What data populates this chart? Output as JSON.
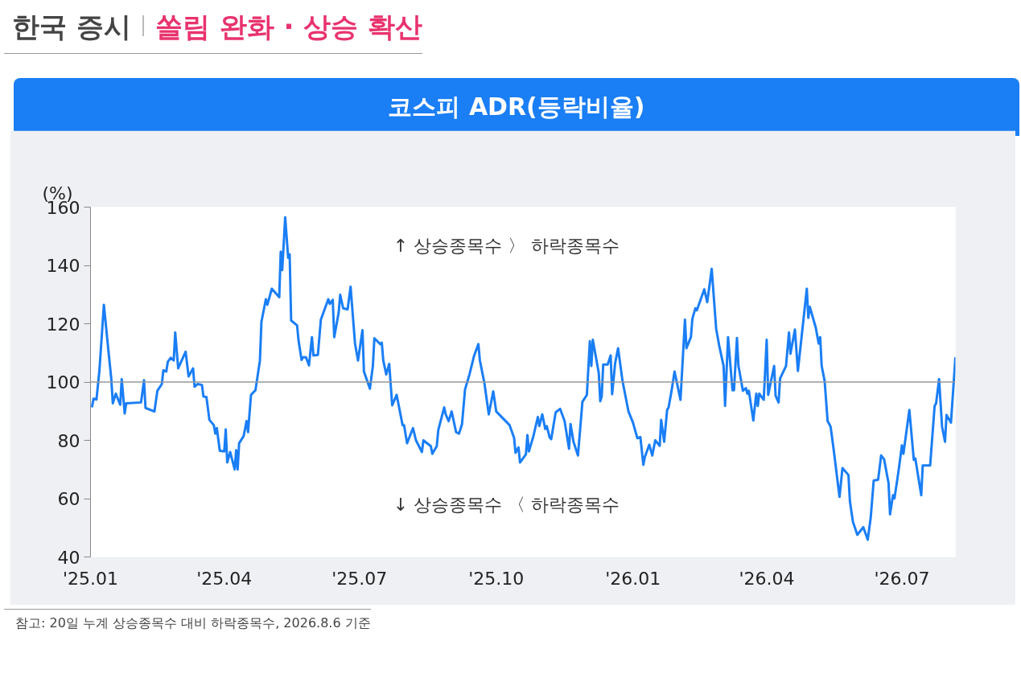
{
  "chart_data": {
    "type": "line",
    "title": "코스피 ADR(등락비율)",
    "ylabel": "(%)",
    "annotations": [
      "한국 증시",
      "쏠림 완화 · 상승 확산",
      "↑ 상승종목수 〉 하락종목수",
      "↓ 상승종목수 〈 하락종목수",
      "참고: 20일 누계 상승종목수 대비 하락종목수, 2026.8.6 기준"
    ],
    "xlim": [
      "2025-01-01",
      "2026-08-06"
    ],
    "xticks": [
      {
        "value": "2025-01-01",
        "label": "'25.01"
      },
      {
        "value": "2025-04-01",
        "label": "'25.04"
      },
      {
        "value": "2025-07-01",
        "label": "'25.07"
      },
      {
        "value": "2025-10-01",
        "label": "'25.10"
      },
      {
        "value": "2026-01-01",
        "label": "'26.01"
      },
      {
        "value": "2026-04-01",
        "label": "'26.04"
      },
      {
        "value": "2026-07-01",
        "label": "'26.07"
      }
    ],
    "ylim": [
      40,
      160
    ],
    "yticks": [
      40,
      60,
      80,
      100,
      120,
      140,
      160
    ],
    "grid": false,
    "marker": "none",
    "line_style": "solid",
    "ref_lines": [
      {
        "axis": "y",
        "value": 100,
        "color": "#999999"
      }
    ],
    "x": [
      "2025-01-02",
      "2025-01-03",
      "2025-01-05",
      "2025-01-07",
      "2025-01-10",
      "2025-01-13",
      "2025-01-15",
      "2025-01-16",
      "2025-01-18",
      "2025-01-21",
      "2025-01-22",
      "2025-01-24",
      "2025-01-25",
      "2025-02-04",
      "2025-02-06",
      "2025-02-07",
      "2025-02-13",
      "2025-02-15",
      "2025-02-18",
      "2025-02-19",
      "2025-02-21",
      "2025-02-22",
      "2025-02-24",
      "2025-02-26",
      "2025-02-27",
      "2025-03-01",
      "2025-03-06",
      "2025-03-08",
      "2025-03-11",
      "2025-03-12",
      "2025-03-14",
      "2025-03-17",
      "2025-03-18",
      "2025-03-20",
      "2025-03-22",
      "2025-03-25",
      "2025-03-26",
      "2025-03-27",
      "2025-03-29",
      "2025-04-01",
      "2025-04-02",
      "2025-04-03",
      "2025-04-05",
      "2025-04-08",
      "2025-04-09",
      "2025-04-10",
      "2025-04-11",
      "2025-04-14",
      "2025-04-16",
      "2025-04-17",
      "2025-04-19",
      "2025-04-22",
      "2025-04-25",
      "2025-04-26",
      "2025-04-29",
      "2025-04-30",
      "2025-05-03",
      "2025-05-08",
      "2025-05-09",
      "2025-05-10",
      "2025-05-12",
      "2025-05-14",
      "2025-05-15",
      "2025-05-16",
      "2025-05-20",
      "2025-05-21",
      "2025-05-23",
      "2025-05-24",
      "2025-05-26",
      "2025-05-28",
      "2025-05-30",
      "2025-05-31",
      "2025-06-03",
      "2025-06-05",
      "2025-06-10",
      "2025-06-11",
      "2025-06-13",
      "2025-06-14",
      "2025-06-17",
      "2025-06-18",
      "2025-06-20",
      "2025-06-23",
      "2025-06-25",
      "2025-06-28",
      "2025-06-30",
      "2025-07-03",
      "2025-07-04",
      "2025-07-08",
      "2025-07-10",
      "2025-07-11",
      "2025-07-13",
      "2025-07-15",
      "2025-07-16",
      "2025-07-17",
      "2025-07-19",
      "2025-07-21",
      "2025-07-23",
      "2025-07-26",
      "2025-07-30",
      "2025-07-31",
      "2025-08-02",
      "2025-08-06",
      "2025-08-08",
      "2025-08-12",
      "2025-08-13",
      "2025-08-18",
      "2025-08-19",
      "2025-08-22",
      "2025-08-23",
      "2025-08-27",
      "2025-08-28",
      "2025-08-30",
      "2025-09-01",
      "2025-09-04",
      "2025-09-06",
      "2025-09-08",
      "2025-09-10",
      "2025-09-13",
      "2025-09-16",
      "2025-09-19",
      "2025-09-20",
      "2025-09-23",
      "2025-09-26",
      "2025-09-29",
      "2025-10-01",
      "2025-10-10",
      "2025-10-13",
      "2025-10-14",
      "2025-10-16",
      "2025-10-17",
      "2025-10-21",
      "2025-10-22",
      "2025-10-23",
      "2025-10-26",
      "2025-10-29",
      "2025-10-30",
      "2025-11-01",
      "2025-11-03",
      "2025-11-04",
      "2025-11-06",
      "2025-11-07",
      "2025-11-10",
      "2025-11-13",
      "2025-11-16",
      "2025-11-19",
      "2025-11-20",
      "2025-11-22",
      "2025-11-25",
      "2025-11-28",
      "2025-12-01",
      "2025-12-03",
      "2025-12-04",
      "2025-12-05",
      "2025-12-09",
      "2025-12-10",
      "2025-12-11",
      "2025-12-12",
      "2025-12-15",
      "2025-12-17",
      "2025-12-18",
      "2025-12-20",
      "2025-12-22",
      "2025-12-25",
      "2025-12-29",
      "2026-01-01",
      "2026-01-04",
      "2026-01-06",
      "2026-01-08",
      "2026-01-09",
      "2026-01-12",
      "2026-01-14",
      "2026-01-16",
      "2026-01-19",
      "2026-01-20",
      "2026-01-22",
      "2026-01-24",
      "2026-01-25",
      "2026-01-27",
      "2026-01-29",
      "2026-02-02",
      "2026-02-05",
      "2026-02-06",
      "2026-02-09",
      "2026-02-10",
      "2026-02-12",
      "2026-02-13",
      "2026-02-18",
      "2026-02-20",
      "2026-02-23",
      "2026-02-26",
      "2026-02-28",
      "2026-03-03",
      "2026-03-04",
      "2026-03-06",
      "2026-03-09",
      "2026-03-10",
      "2026-03-12",
      "2026-03-13",
      "2026-03-16",
      "2026-03-18",
      "2026-03-19",
      "2026-03-20",
      "2026-03-23",
      "2026-03-25",
      "2026-03-26",
      "2026-03-27",
      "2026-03-30",
      "2026-04-01",
      "2026-04-02",
      "2026-04-06",
      "2026-04-07",
      "2026-04-09",
      "2026-04-10",
      "2026-04-14",
      "2026-04-16",
      "2026-04-17",
      "2026-04-20",
      "2026-04-22",
      "2026-04-28",
      "2026-04-29",
      "2026-04-30",
      "2026-05-04",
      "2026-05-06",
      "2026-05-07",
      "2026-05-08",
      "2026-05-10",
      "2026-05-12",
      "2026-05-14",
      "2026-05-16",
      "2026-05-20",
      "2026-05-22",
      "2026-05-26",
      "2026-05-27",
      "2026-05-29",
      "2026-06-01",
      "2026-06-05",
      "2026-06-08",
      "2026-06-10",
      "2026-06-12",
      "2026-06-15",
      "2026-06-17",
      "2026-06-19",
      "2026-06-22",
      "2026-06-23",
      "2026-06-25",
      "2026-06-26",
      "2026-06-29",
      "2026-07-01",
      "2026-07-02",
      "2026-07-06",
      "2026-07-09",
      "2026-07-10",
      "2026-07-14",
      "2026-07-15",
      "2026-07-20",
      "2026-07-23",
      "2026-07-24",
      "2026-07-26",
      "2026-07-28",
      "2026-07-30",
      "2026-07-31",
      "2026-08-03",
      "2026-08-06"
    ],
    "series": [
      {
        "color": "#1a7ef5",
        "values": [
          91.3,
          94.3,
          94,
          104,
          126.5,
          111,
          101,
          92.7,
          96,
          92.2,
          101,
          89.2,
          92.7,
          93,
          100.6,
          91.1,
          89.9,
          97,
          99.3,
          104,
          103.6,
          106.9,
          108.3,
          107.4,
          117,
          104.7,
          110.4,
          101.9,
          104.7,
          98.4,
          99.3,
          99,
          95,
          94.9,
          87,
          85.2,
          82.3,
          84.2,
          76.4,
          76.2,
          83.7,
          72.4,
          76,
          70,
          76.6,
          70,
          79,
          81.4,
          86.6,
          82.8,
          95.6,
          97.2,
          107.4,
          120.6,
          128.4,
          126.5,
          132,
          129.1,
          144.7,
          138.4,
          156.5,
          142.6,
          143.8,
          121.1,
          119.4,
          114.2,
          107.6,
          108.5,
          108.5,
          105.7,
          115.4,
          109.1,
          109.3,
          121.4,
          128.4,
          126.8,
          128.2,
          115.4,
          123.9,
          129.9,
          125.3,
          124.9,
          132.7,
          113.2,
          107.4,
          117.8,
          103.6,
          97.7,
          105.5,
          115,
          114,
          113,
          113.5,
          107.4,
          102.6,
          106.2,
          92,
          95.6,
          85.2,
          85.2,
          79,
          84.2,
          80,
          76,
          80,
          78,
          75.4,
          78,
          83.5,
          91.3,
          88.9,
          86.6,
          89.9,
          82.8,
          82.3,
          85.6,
          97.4,
          102.6,
          108.8,
          113,
          107.4,
          99.8,
          88.9,
          96.8,
          89.9,
          85.2,
          80.9,
          75.7,
          77.6,
          72.4,
          75.2,
          81.8,
          76.2,
          81.4,
          88,
          84.9,
          88.9,
          83.9,
          84.9,
          80.9,
          80.4,
          89.6,
          90.8,
          86.6,
          77.1,
          85.6,
          79.5,
          74.8,
          93.2,
          95.6,
          114,
          105.5,
          114.5,
          103.1,
          93.4,
          95.1,
          106,
          106,
          109.1,
          95.8,
          106.4,
          111.6,
          100.3,
          89.9,
          86.1,
          80.7,
          81.1,
          71.6,
          74.3,
          78.5,
          74.8,
          80,
          78.1,
          87,
          79.5,
          90.4,
          91.3,
          97,
          103.6,
          93.9,
          121.4,
          111.6,
          115.4,
          121.7,
          125.3,
          124.6,
          131.8,
          127.4,
          138.8,
          118.3,
          112.6,
          105.5,
          91.8,
          115.4,
          97.2,
          97.2,
          115.1,
          105.5,
          97,
          97.9,
          96,
          97,
          86.8,
          96,
          91.8,
          96,
          93.9,
          114.5,
          95.6,
          105.5,
          95.3,
          93,
          101.2,
          105.5,
          117,
          109.7,
          118,
          103.8,
          132,
          122,
          125.8,
          118.7,
          113.2,
          115.4,
          105.5,
          100.3,
          86.6,
          84.7,
          77.1,
          60.6,
          70.5,
          68.1,
          59.1,
          52.1,
          47.6,
          50.2,
          45.9,
          53.5,
          66.2,
          66.5,
          74.8,
          73.5,
          65.3,
          54.6,
          61.2,
          60.1,
          70.5,
          78.3,
          75.4,
          90.4,
          73.3,
          73.8,
          61.2,
          71.4,
          71.4,
          91.8,
          92.7,
          101,
          84.7,
          79.5,
          88.7,
          86.1,
          108.5
        ]
      }
    ]
  }
}
